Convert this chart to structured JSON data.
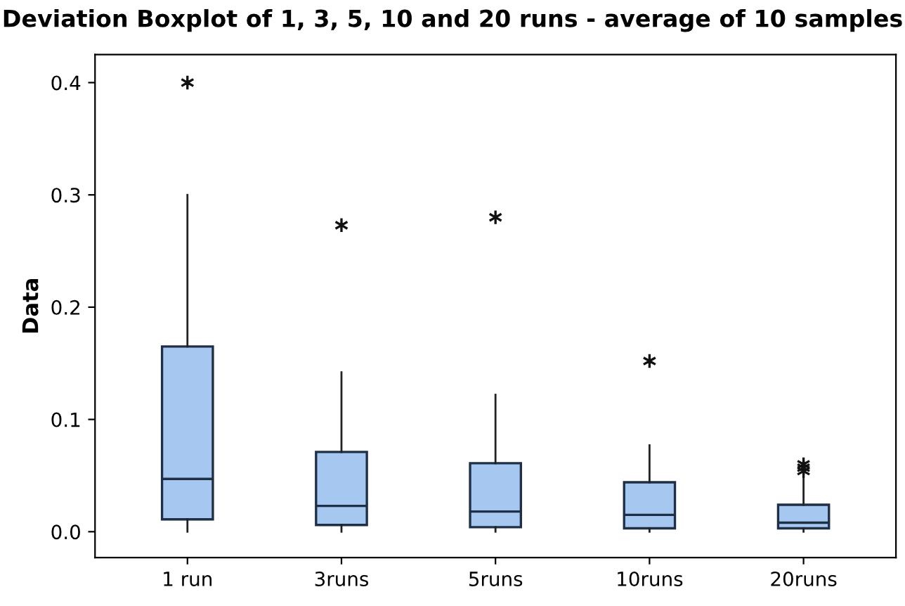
{
  "chart_data": {
    "type": "box",
    "title": "Deviation Boxplot of 1, 3, 5, 10 and 20 runs - average of 10 samples",
    "ylabel": "Data",
    "categories": [
      "1 run",
      "3runs",
      "5runs",
      "10runs",
      "20runs"
    ],
    "color": "#a6c8f0",
    "boxes": [
      {
        "low": 0,
        "q1": 0.011,
        "median": 0.047,
        "q3": 0.165,
        "high": 0.3,
        "outliers": [
          0.4
        ]
      },
      {
        "low": 0,
        "q1": 0.006,
        "median": 0.023,
        "q3": 0.071,
        "high": 0.142,
        "outliers": [
          0.273
        ]
      },
      {
        "low": 0,
        "q1": 0.004,
        "median": 0.018,
        "q3": 0.061,
        "high": 0.122,
        "outliers": [
          0.28
        ]
      },
      {
        "low": 0,
        "q1": 0.003,
        "median": 0.015,
        "q3": 0.044,
        "high": 0.077,
        "outliers": [
          0.152
        ]
      },
      {
        "low": 0,
        "q1": 0.003,
        "median": 0.008,
        "q3": 0.024,
        "high": 0.05,
        "outliers": [
          0.054,
          0.057,
          0.06
        ]
      }
    ],
    "ylim": [
      -0.023,
      0.425
    ],
    "yticks": [
      {
        "value": 0,
        "label": "0.0"
      },
      {
        "value": 0.1,
        "label": "0.1"
      },
      {
        "value": 0.2,
        "label": "0.2"
      },
      {
        "value": 0.3,
        "label": "0.3"
      },
      {
        "value": 0.4,
        "label": "0.4"
      }
    ],
    "grid": false
  }
}
